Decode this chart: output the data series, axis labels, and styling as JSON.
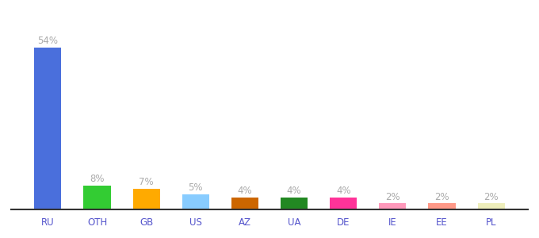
{
  "categories": [
    "RU",
    "OTH",
    "GB",
    "US",
    "AZ",
    "UA",
    "DE",
    "IE",
    "EE",
    "PL"
  ],
  "values": [
    54,
    8,
    7,
    5,
    4,
    4,
    4,
    2,
    2,
    2
  ],
  "labels": [
    "54%",
    "8%",
    "7%",
    "5%",
    "4%",
    "4%",
    "4%",
    "2%",
    "2%",
    "2%"
  ],
  "colors": [
    "#4a6fdc",
    "#33cc33",
    "#ffaa00",
    "#88ccff",
    "#cc6600",
    "#228822",
    "#ff3399",
    "#ff99bb",
    "#ff9988",
    "#eeeebb"
  ],
  "background_color": "#ffffff",
  "label_color": "#aaaaaa",
  "label_fontsize": 8.5,
  "tick_color": "#5555cc",
  "ylim": [
    0,
    62
  ],
  "bar_width": 0.55
}
